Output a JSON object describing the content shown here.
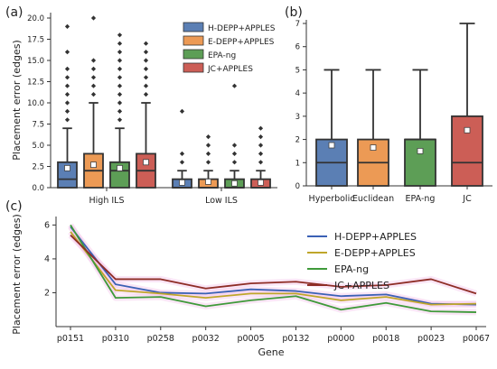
{
  "panels": {
    "a": "(a)",
    "b": "(b)",
    "c": "(c)"
  },
  "colors": {
    "hdepp": "#5b7fb4",
    "edepp": "#ec9a55",
    "epang": "#5d9e56",
    "jc": "#cc5e56",
    "hdepp_line": "#3b61b5",
    "edepp_line": "#bfa62a",
    "epang_line": "#3f9a3a",
    "jc_line": "#8e2d26",
    "line_band": "#f2b6e6"
  },
  "chart_data": [
    {
      "id": "a",
      "type": "box",
      "xlabel": "",
      "ylabel": "Placement error (edges)",
      "ylim": [
        0,
        20
      ],
      "yticks": [
        "0.0",
        "2.5",
        "5.0",
        "7.5",
        "10.0",
        "12.5",
        "15.0",
        "17.5",
        "20.0"
      ],
      "ytick_values": [
        0,
        2.5,
        5,
        7.5,
        10,
        12.5,
        15,
        17.5,
        20
      ],
      "categories": [
        "High ILS",
        "Low ILS"
      ],
      "legend": {
        "placement": "top-right",
        "entries": [
          "H-DEPP+APPLES",
          "E-DEPP+APPLES",
          "EPA-ng",
          "JC+APPLES"
        ]
      },
      "series": [
        {
          "name": "H-DEPP+APPLES",
          "color_key": "hdepp",
          "boxes": [
            {
              "q1": 0,
              "median": 1,
              "q3": 3,
              "wlow": 0,
              "whigh": 7,
              "mean": 2.3,
              "outliers": [
                8,
                9,
                10,
                11,
                12,
                13,
                14,
                16,
                19
              ]
            },
            {
              "q1": 0,
              "median": 0,
              "q3": 1,
              "wlow": 0,
              "whigh": 2,
              "mean": 0.6,
              "outliers": [
                3,
                4,
                9
              ]
            }
          ]
        },
        {
          "name": "E-DEPP+APPLES",
          "color_key": "edepp",
          "boxes": [
            {
              "q1": 0,
              "median": 2,
              "q3": 4,
              "wlow": 0,
              "whigh": 10,
              "mean": 2.7,
              "outliers": [
                11,
                12,
                13,
                14,
                15,
                20
              ]
            },
            {
              "q1": 0,
              "median": 0,
              "q3": 1,
              "wlow": 0,
              "whigh": 2,
              "mean": 0.7,
              "outliers": [
                3,
                4,
                5,
                6
              ]
            }
          ]
        },
        {
          "name": "EPA-ng",
          "color_key": "epang",
          "boxes": [
            {
              "q1": 0,
              "median": 2,
              "q3": 3,
              "wlow": 0,
              "whigh": 7,
              "mean": 2.3,
              "outliers": [
                8,
                9,
                10,
                11,
                12,
                13,
                14,
                15,
                16,
                17,
                18
              ]
            },
            {
              "q1": 0,
              "median": 0,
              "q3": 1,
              "wlow": 0,
              "whigh": 2,
              "mean": 0.5,
              "outliers": [
                3,
                4,
                5,
                12
              ]
            }
          ]
        },
        {
          "name": "JC+APPLES",
          "color_key": "jc",
          "boxes": [
            {
              "q1": 0,
              "median": 2,
              "q3": 4,
              "wlow": 0,
              "whigh": 10,
              "mean": 3.0,
              "outliers": [
                11,
                12,
                13,
                14,
                15,
                16,
                17
              ]
            },
            {
              "q1": 0,
              "median": 0,
              "q3": 1,
              "wlow": 0,
              "whigh": 2,
              "mean": 0.6,
              "outliers": [
                3,
                4,
                5,
                6,
                7
              ]
            }
          ]
        }
      ]
    },
    {
      "id": "b",
      "type": "box",
      "xlabel": "",
      "ylabel": "",
      "ylim": [
        0,
        7
      ],
      "yticks": [
        "0",
        "1",
        "2",
        "3",
        "4",
        "5",
        "6",
        "7"
      ],
      "ytick_values": [
        0,
        1,
        2,
        3,
        4,
        5,
        6,
        7
      ],
      "categories": [
        "Hyperbolic",
        "Euclidean",
        "EPA-ng",
        "JC"
      ],
      "series": [
        {
          "category": "Hyperbolic",
          "color_key": "hdepp",
          "box": {
            "q1": 0,
            "median": 1,
            "q3": 2,
            "wlow": 0,
            "whigh": 5,
            "mean": 1.75
          }
        },
        {
          "category": "Euclidean",
          "color_key": "edepp",
          "box": {
            "q1": 0,
            "median": 1,
            "q3": 2,
            "wlow": 0,
            "whigh": 5,
            "mean": 1.65
          }
        },
        {
          "category": "EPA-ng",
          "color_key": "epang",
          "box": {
            "q1": 0,
            "median": 2,
            "q3": 2,
            "wlow": 0,
            "whigh": 5,
            "mean": 1.5
          }
        },
        {
          "category": "JC",
          "color_key": "jc",
          "box": {
            "q1": 0,
            "median": 1,
            "q3": 3,
            "wlow": 0,
            "whigh": 7,
            "mean": 2.4
          }
        }
      ]
    },
    {
      "id": "c",
      "type": "line",
      "xlabel": "Gene",
      "ylabel": "Placement error (edges)",
      "ylim": [
        0,
        6.5
      ],
      "yticks": [
        "2",
        "4",
        "6"
      ],
      "ytick_values": [
        2,
        4,
        6
      ],
      "categories": [
        "p0151",
        "p0310",
        "p0258",
        "p0032",
        "p0005",
        "p0132",
        "p0000",
        "p0018",
        "p0023",
        "p0067"
      ],
      "legend": {
        "placement": "top-right",
        "entries": [
          "H-DEPP+APPLES",
          "E-DEPP+APPLES",
          "EPA-ng",
          "JC+APPLES"
        ]
      },
      "series": [
        {
          "name": "H-DEPP+APPLES",
          "color_key": "hdepp_line",
          "values": [
            5.9,
            2.5,
            2.0,
            1.95,
            2.2,
            2.1,
            1.8,
            1.9,
            1.35,
            1.3
          ]
        },
        {
          "name": "E-DEPP+APPLES",
          "color_key": "edepp_line",
          "values": [
            5.6,
            2.15,
            1.95,
            1.7,
            1.95,
            1.95,
            1.55,
            1.75,
            1.3,
            1.35
          ]
        },
        {
          "name": "EPA-ng",
          "color_key": "epang_line",
          "values": [
            6.0,
            1.7,
            1.75,
            1.2,
            1.55,
            1.8,
            1.0,
            1.4,
            0.9,
            0.85
          ]
        },
        {
          "name": "JC+APPLES",
          "color_key": "jc_line",
          "values": [
            5.4,
            2.8,
            2.8,
            2.25,
            2.55,
            2.65,
            2.35,
            2.45,
            2.8,
            1.95
          ]
        }
      ]
    }
  ]
}
